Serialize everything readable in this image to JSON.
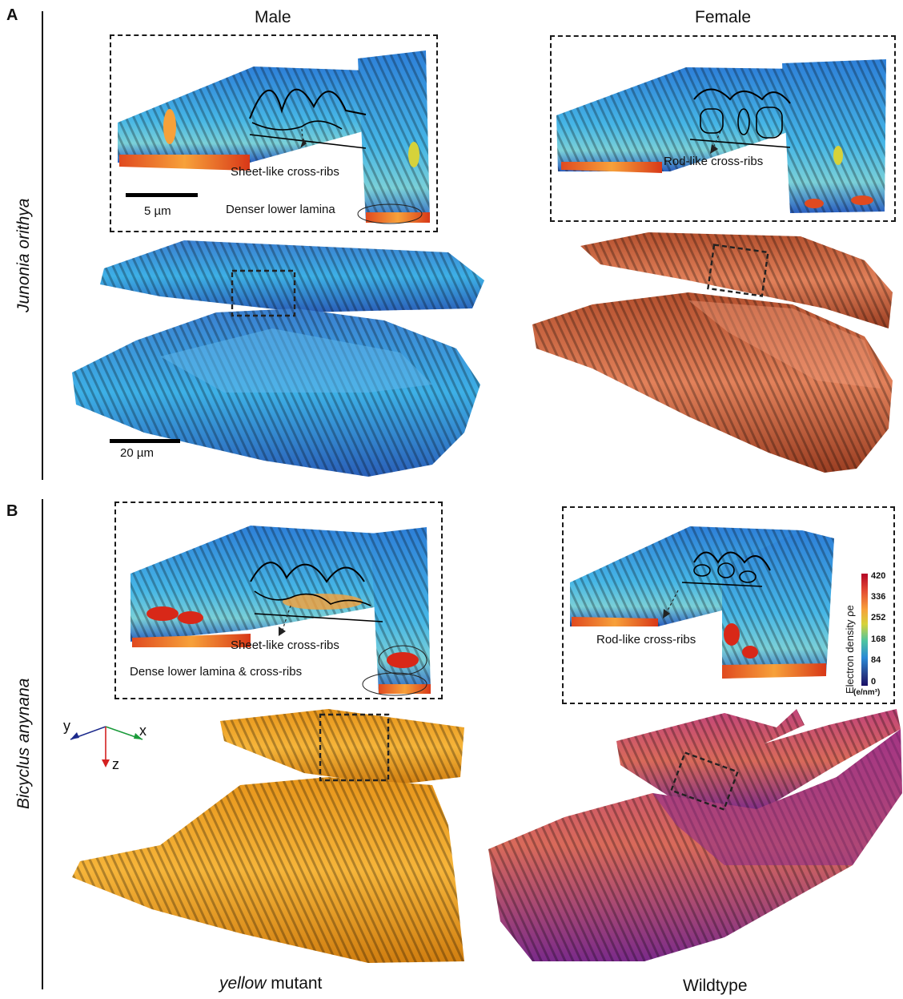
{
  "panels": [
    {
      "letter": "A",
      "species": "Junonia orithya"
    },
    {
      "letter": "B",
      "species": "Bicyclus anynana"
    }
  ],
  "columns": {
    "left": "Male",
    "right": "Female"
  },
  "insets": {
    "a_male": {
      "arrow_label": "Sheet-like cross-ribs",
      "lamina_label": "Denser lower lamina",
      "scale_label": "5 µm"
    },
    "a_female": {
      "arrow_label": "Rod-like cross-ribs"
    },
    "b_mutant": {
      "arrow_label": "Sheet-like cross-ribs",
      "lamina_label": "Dense lower lamina & cross-ribs"
    },
    "b_wildtype": {
      "arrow_label": "Rod-like cross-ribs"
    }
  },
  "scale_main": "20 µm",
  "colorbar": {
    "title": "Electron density ρe",
    "unit": "(e/nm³)",
    "ticks": [
      "420",
      "336",
      "252",
      "168",
      "84",
      "0"
    ],
    "colors": [
      "#b40426",
      "#e34a33",
      "#f7a13a",
      "#d6d23a",
      "#4fc4a0",
      "#2b8ad6",
      "#27408b",
      "#1a0f66"
    ]
  },
  "axes": {
    "x": "x",
    "y": "y",
    "z": "z",
    "x_color": "#1a9a3a",
    "y_color": "#1c2a8c",
    "z_color": "#d42020"
  },
  "captions": {
    "mutant_italic": "yellow",
    "mutant_rest": " mutant",
    "wildtype": "Wildtype"
  }
}
